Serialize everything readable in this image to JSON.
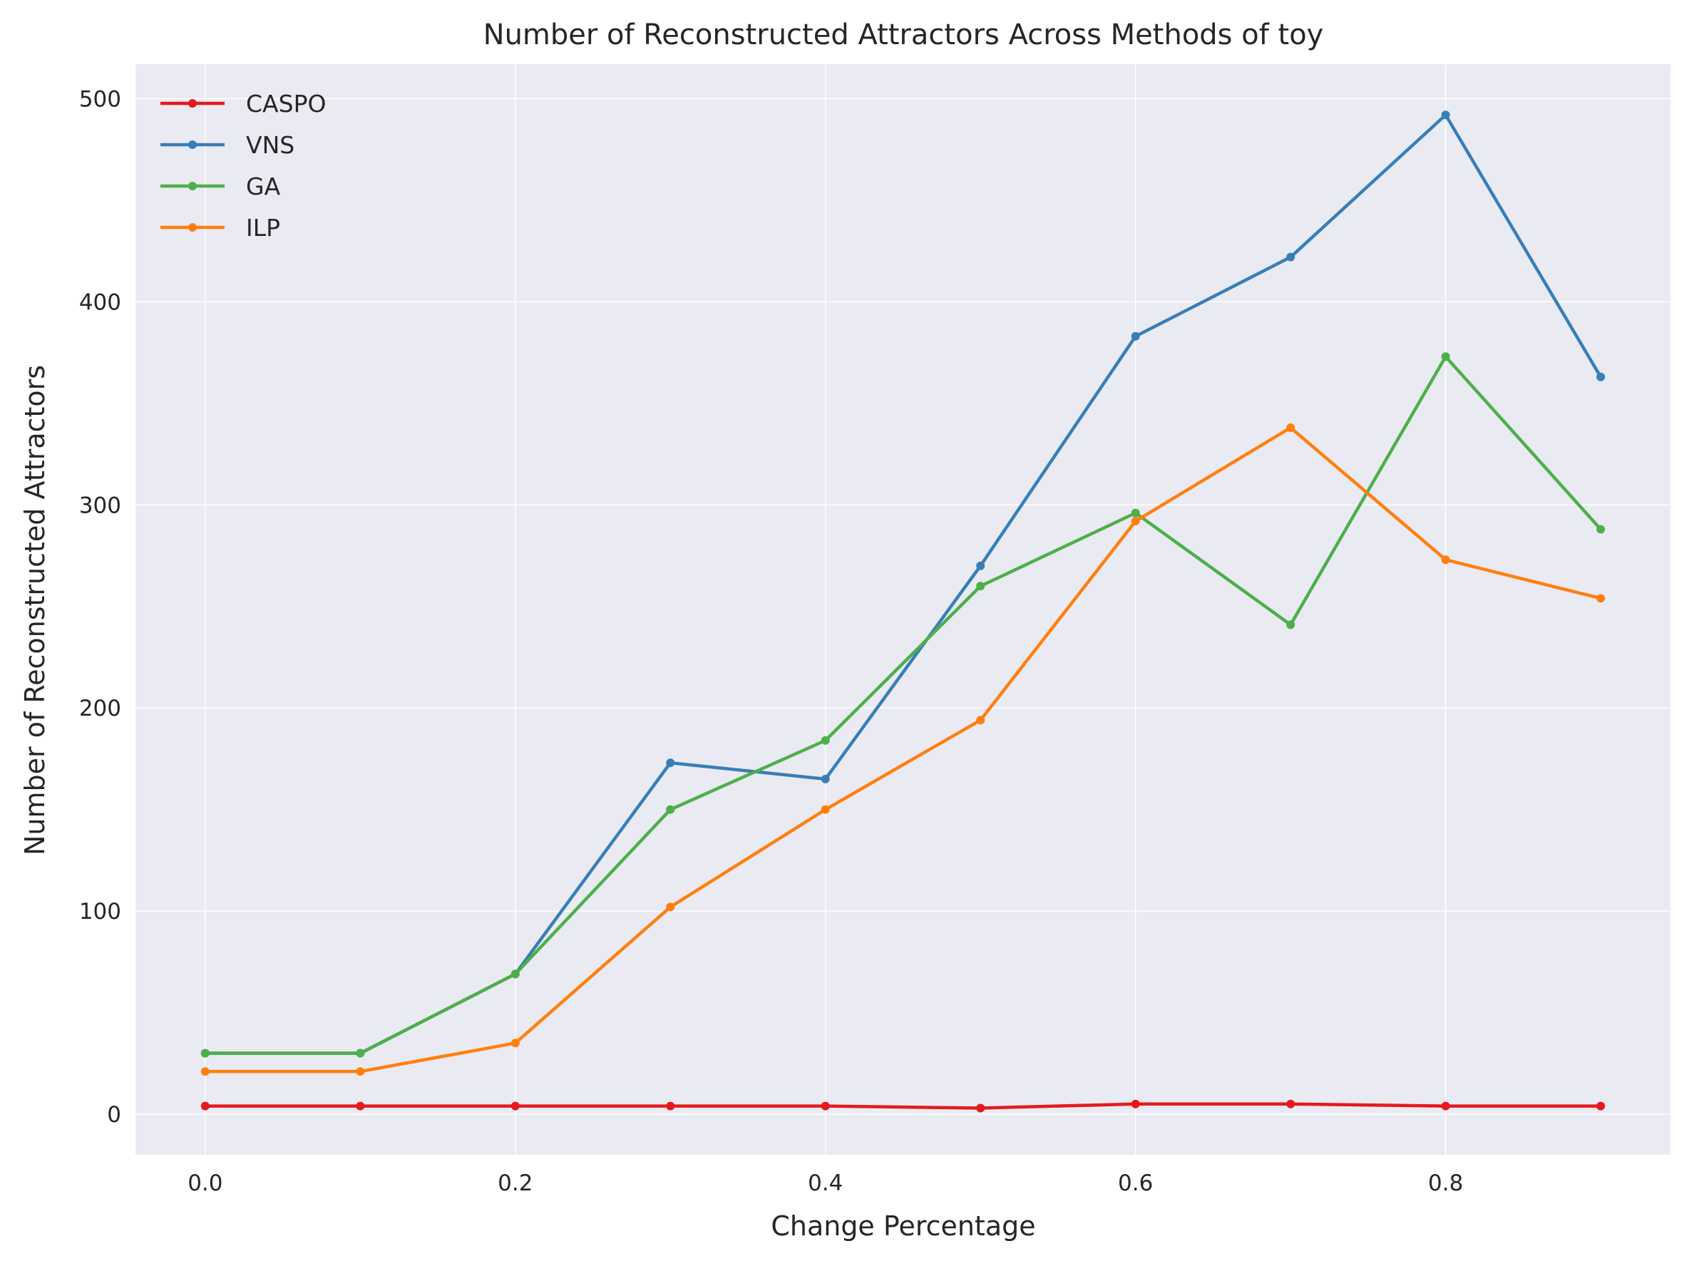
{
  "chart_data": {
    "type": "line",
    "title": "Number of Reconstructed Attractors Across Methods of toy",
    "xlabel": "Change Percentage",
    "ylabel": "Number of Reconstructed Attractors",
    "x": [
      0.0,
      0.1,
      0.2,
      0.3,
      0.4,
      0.5,
      0.6,
      0.7,
      0.8,
      0.9
    ],
    "xlim": [
      -0.045,
      0.945
    ],
    "ylim": [
      -20,
      517
    ],
    "xticks": [
      "0.0",
      "0.2",
      "0.4",
      "0.6",
      "0.8"
    ],
    "xtick_values": [
      0.0,
      0.2,
      0.4,
      0.6,
      0.8
    ],
    "yticks": [
      "0",
      "100",
      "200",
      "300",
      "400",
      "500"
    ],
    "ytick_values": [
      0,
      100,
      200,
      300,
      400,
      500
    ],
    "grid": true,
    "legend_position": "top-left",
    "background": "#eaeaf2",
    "series": [
      {
        "name": "CASPO",
        "color": "#e41a1c",
        "values": [
          4,
          4,
          4,
          4,
          4,
          3,
          5,
          5,
          4,
          4
        ]
      },
      {
        "name": "VNS",
        "color": "#377eb8",
        "values": [
          30,
          30,
          69,
          173,
          165,
          270,
          383,
          422,
          492,
          363
        ]
      },
      {
        "name": "GA",
        "color": "#4daf4a",
        "values": [
          30,
          30,
          69,
          150,
          184,
          260,
          296,
          241,
          373,
          288
        ]
      },
      {
        "name": "ILP",
        "color": "#ff7f0e",
        "values": [
          21,
          21,
          35,
          102,
          150,
          194,
          292,
          338,
          273,
          254
        ]
      }
    ]
  }
}
